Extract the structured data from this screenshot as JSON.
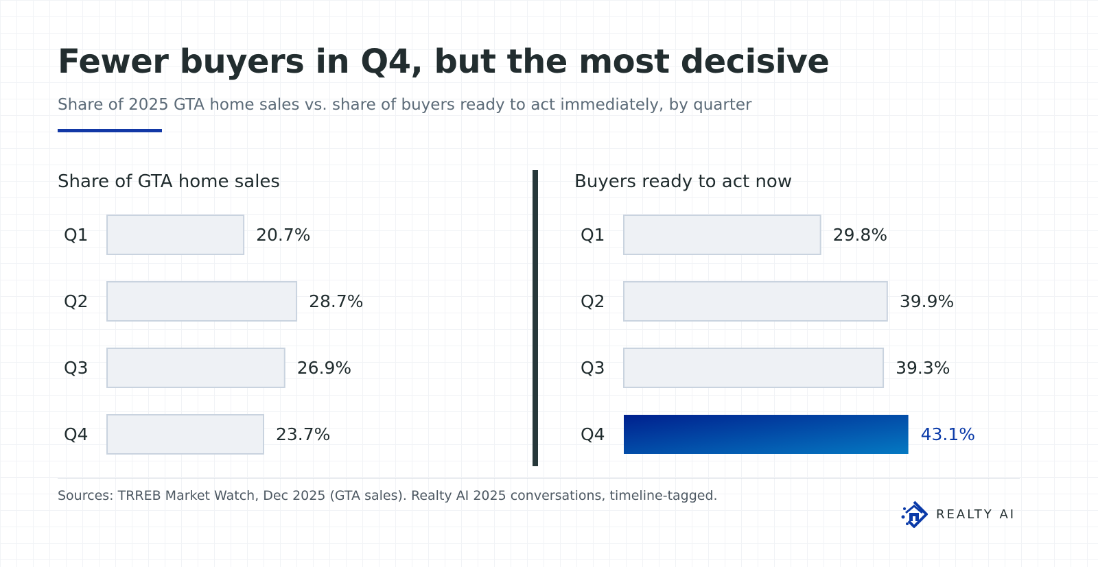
{
  "header": {
    "title": "Fewer buyers in Q4, but the most decisive",
    "subtitle": "Share of 2025 GTA home sales vs. share of buyers ready to act immediately, by quarter"
  },
  "colors": {
    "accent": "#1238a6",
    "bar_fill": "#eef1f5",
    "bar_stroke": "#c9d3df",
    "highlight_start": "#00208e",
    "highlight_end": "#0579c2",
    "highlight_text": "#0a3aa8"
  },
  "chart_data": [
    {
      "type": "bar",
      "title": "Share of GTA home sales",
      "categories": [
        "Q1",
        "Q2",
        "Q3",
        "Q4"
      ],
      "values": [
        20.7,
        28.7,
        26.9,
        23.7
      ],
      "value_labels": [
        "20.7%",
        "28.7%",
        "26.9%",
        "23.7%"
      ],
      "highlight_index": null
    },
    {
      "type": "bar",
      "title": "Buyers ready to act now",
      "categories": [
        "Q1",
        "Q2",
        "Q3",
        "Q4"
      ],
      "values": [
        29.8,
        39.9,
        39.3,
        43.1
      ],
      "value_labels": [
        "29.8%",
        "39.9%",
        "39.3%",
        "43.1%"
      ],
      "highlight_index": 3
    }
  ],
  "footer": {
    "source": "Sources: TRREB Market Watch, Dec 2025 (GTA sales). Realty AI 2025 conversations, timeline-tagged.",
    "brand": "REALTY AI",
    "brand_icon": "realty-ai-logo-icon"
  }
}
